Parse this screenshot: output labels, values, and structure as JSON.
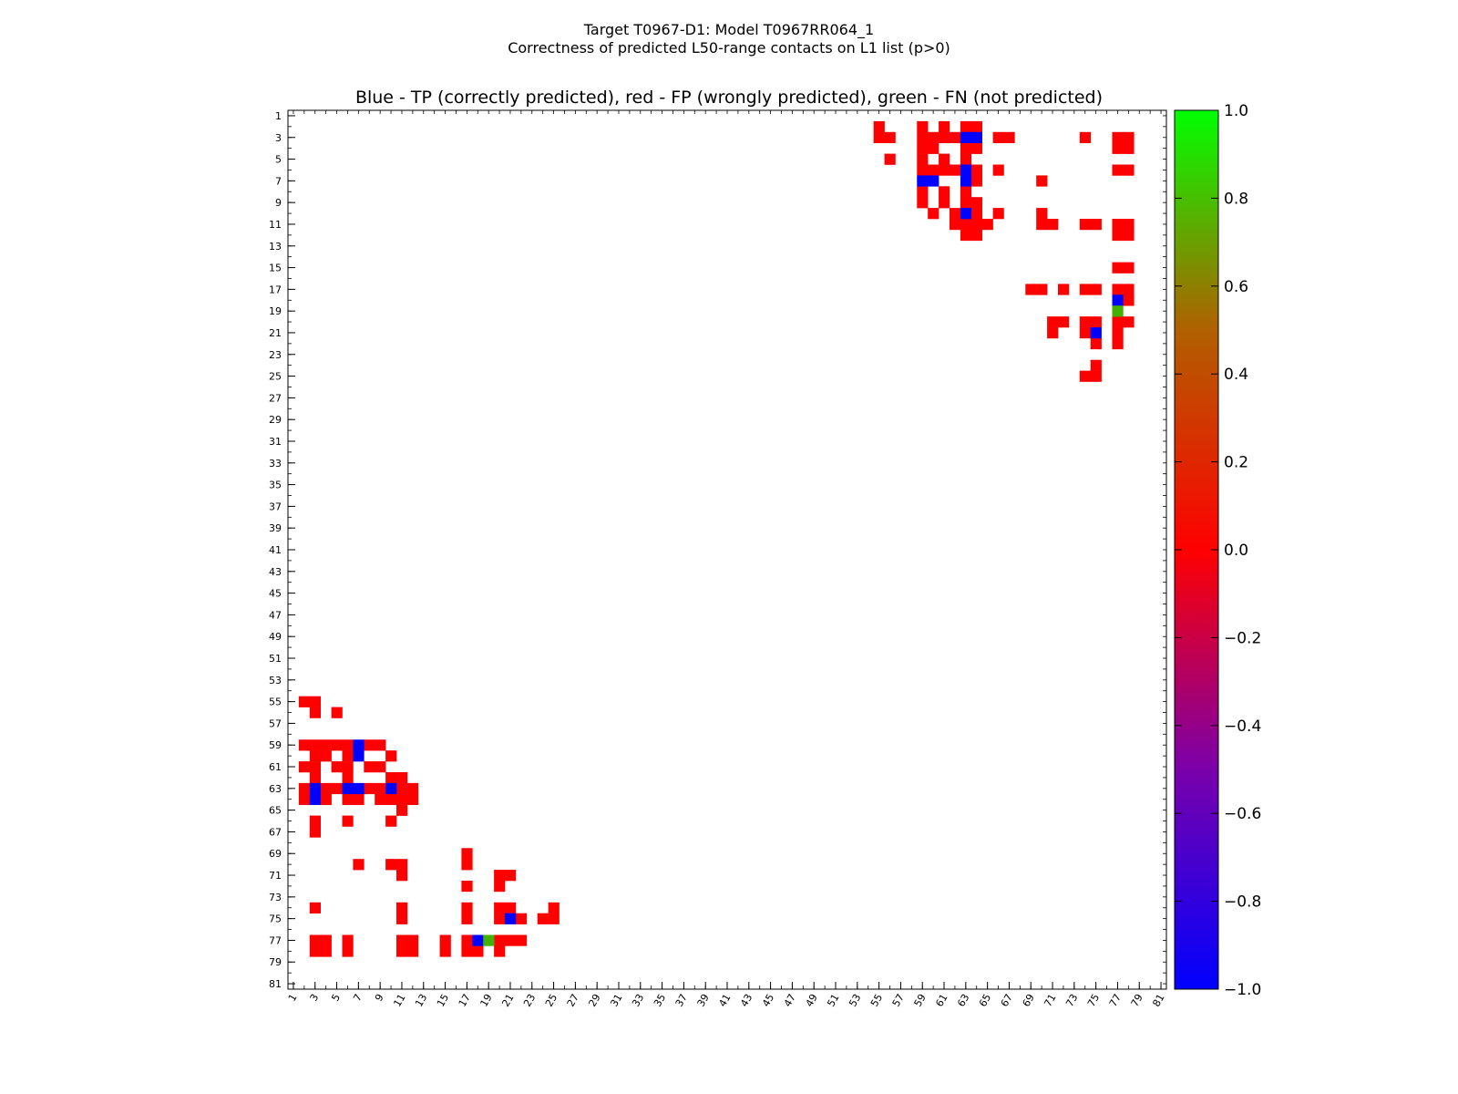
{
  "chart_data": {
    "type": "heatmap",
    "suptitle_line1": "Target T0967-D1: Model T0967RR064_1",
    "suptitle_line2": "Correctness of predicted L50-range contacts on L1 list (p>0)",
    "title": "Blue - TP (correctly predicted), red - FP (wrongly predicted), green - FN (not predicted)",
    "n": 81,
    "x_ticks": [
      "1",
      "3",
      "5",
      "7",
      "9",
      "11",
      "13",
      "15",
      "17",
      "19",
      "21",
      "23",
      "25",
      "27",
      "29",
      "31",
      "33",
      "35",
      "37",
      "39",
      "41",
      "43",
      "45",
      "47",
      "49",
      "51",
      "53",
      "55",
      "57",
      "59",
      "61",
      "63",
      "65",
      "67",
      "69",
      "71",
      "73",
      "75",
      "77",
      "79",
      "81"
    ],
    "y_ticks": [
      "1",
      "3",
      "5",
      "7",
      "9",
      "11",
      "13",
      "15",
      "17",
      "19",
      "21",
      "23",
      "25",
      "27",
      "29",
      "31",
      "33",
      "35",
      "37",
      "39",
      "41",
      "43",
      "45",
      "47",
      "49",
      "51",
      "53",
      "55",
      "57",
      "59",
      "61",
      "63",
      "65",
      "67",
      "69",
      "71",
      "73",
      "75",
      "77",
      "79",
      "81"
    ],
    "colorbar": {
      "min": -1.0,
      "max": 1.0,
      "ticks": [
        "1.0",
        "0.8",
        "0.6",
        "0.4",
        "0.2",
        "0.0",
        "−0.2",
        "−0.4",
        "−0.6",
        "−0.8",
        "−1.0"
      ],
      "tick_values": [
        1.0,
        0.8,
        0.6,
        0.4,
        0.2,
        0.0,
        -0.2,
        -0.4,
        -0.6,
        -0.8,
        -1.0
      ],
      "colors": [
        {
          "v": -1.0,
          "c": "#0000ff"
        },
        {
          "v": 0.0,
          "c": "#ff0000"
        },
        {
          "v": 1.0,
          "c": "#00ff00"
        }
      ]
    },
    "legend": {
      "tp": {
        "label": "TP",
        "value": -1,
        "color": "#0000ff"
      },
      "fp": {
        "label": "FP",
        "value": 0,
        "color": "#ff0000"
      },
      "fn": {
        "label": "FN",
        "value": 0.6,
        "color": "#44b000"
      }
    },
    "cells": {
      "tp": [
        [
          3,
          63
        ],
        [
          3,
          64
        ],
        [
          6,
          63
        ],
        [
          7,
          59
        ],
        [
          7,
          60
        ],
        [
          7,
          63
        ],
        [
          10,
          63
        ],
        [
          18,
          77
        ],
        [
          21,
          75
        ]
      ],
      "fn": [
        [
          19,
          77
        ]
      ],
      "fp": [
        [
          2,
          55
        ],
        [
          3,
          55
        ],
        [
          3,
          56
        ],
        [
          5,
          56
        ],
        [
          2,
          59
        ],
        [
          3,
          59
        ],
        [
          4,
          59
        ],
        [
          5,
          59
        ],
        [
          6,
          59
        ],
        [
          8,
          59
        ],
        [
          9,
          59
        ],
        [
          3,
          60
        ],
        [
          4,
          60
        ],
        [
          6,
          60
        ],
        [
          10,
          60
        ],
        [
          6,
          62
        ],
        [
          10,
          62
        ],
        [
          2,
          63
        ],
        [
          4,
          63
        ],
        [
          5,
          63
        ],
        [
          8,
          63
        ],
        [
          9,
          63
        ],
        [
          11,
          63
        ],
        [
          12,
          63
        ],
        [
          2,
          64
        ],
        [
          4,
          64
        ],
        [
          6,
          64
        ],
        [
          7,
          64
        ],
        [
          9,
          64
        ],
        [
          10,
          64
        ],
        [
          11,
          64
        ],
        [
          12,
          64
        ],
        [
          3,
          66
        ],
        [
          3,
          67
        ],
        [
          6,
          66
        ],
        [
          10,
          66
        ],
        [
          7,
          70
        ],
        [
          10,
          70
        ],
        [
          11,
          70
        ],
        [
          17,
          70
        ],
        [
          11,
          71
        ],
        [
          17,
          72
        ],
        [
          20,
          71
        ],
        [
          21,
          71
        ],
        [
          20,
          72
        ],
        [
          3,
          74
        ],
        [
          11,
          74
        ],
        [
          17,
          74
        ],
        [
          20,
          74
        ],
        [
          21,
          74
        ],
        [
          11,
          75
        ],
        [
          17,
          75
        ],
        [
          20,
          75
        ],
        [
          25,
          74
        ],
        [
          22,
          75
        ],
        [
          24,
          75
        ],
        [
          25,
          75
        ],
        [
          3,
          77
        ],
        [
          4,
          77
        ],
        [
          11,
          77
        ],
        [
          17,
          77
        ],
        [
          20,
          77
        ],
        [
          21,
          77
        ],
        [
          22,
          77
        ],
        [
          3,
          78
        ],
        [
          4,
          78
        ],
        [
          6,
          77
        ],
        [
          6,
          78
        ],
        [
          11,
          78
        ],
        [
          12,
          78
        ],
        [
          15,
          77
        ],
        [
          15,
          78
        ],
        [
          17,
          78
        ],
        [
          18,
          78
        ],
        [
          11,
          77
        ],
        [
          12,
          77
        ],
        [
          20,
          78
        ],
        [
          17,
          69
        ],
        [
          11,
          65
        ],
        [
          3,
          61
        ],
        [
          2,
          61
        ],
        [
          5,
          61
        ],
        [
          6,
          61
        ],
        [
          8,
          61
        ],
        [
          9,
          61
        ],
        [
          3,
          62
        ],
        [
          11,
          62
        ]
      ]
    }
  }
}
